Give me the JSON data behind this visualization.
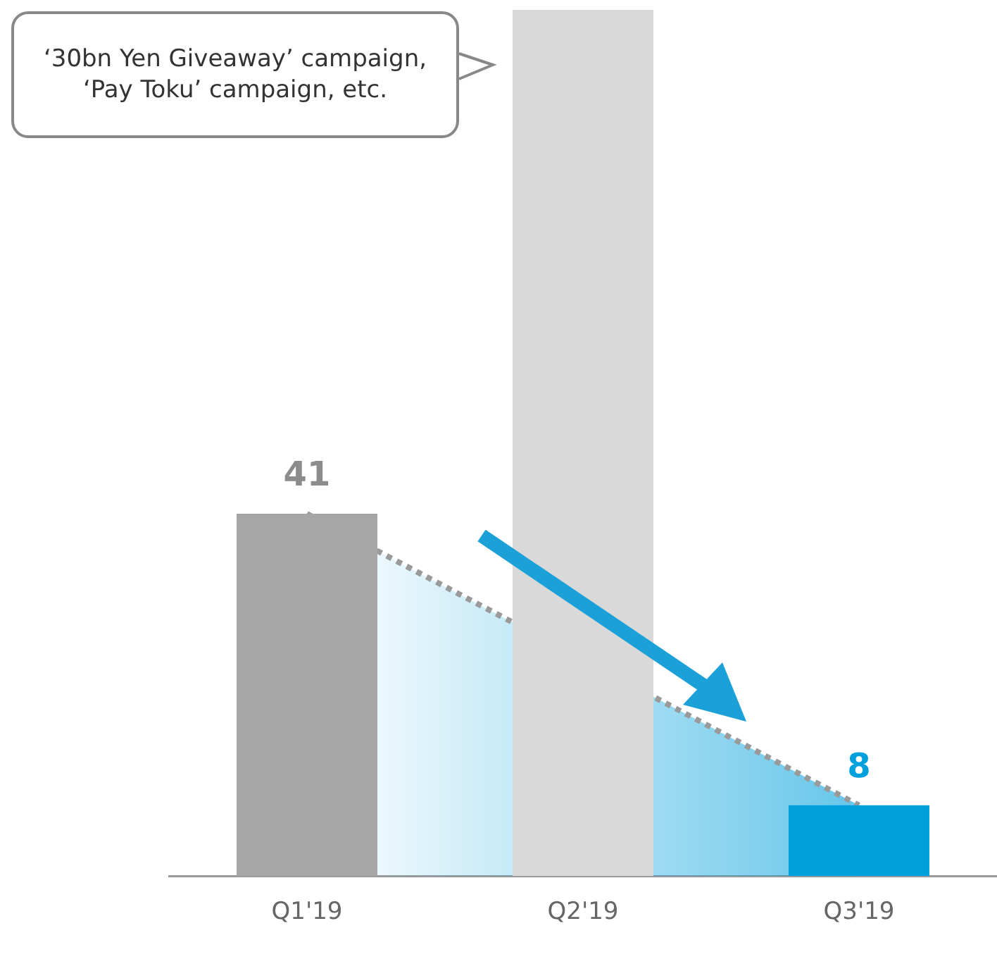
{
  "chart_data": {
    "type": "bar",
    "categories": [
      "Q1'19",
      "Q2'19",
      "Q3'19"
    ],
    "series": [
      {
        "values": [
          41,
          98,
          8
        ],
        "colors": [
          "#a6a6a6",
          "#d9d9d9",
          "#00a0dc"
        ],
        "value_labels": [
          "41",
          null,
          "8"
        ]
      },
      {
        "type": "area",
        "values": [
          41,
          null,
          8
        ],
        "color": "#9a9a9a",
        "line_style": "dotted",
        "marker": "none"
      }
    ],
    "ylim": [
      0,
      98
    ],
    "annotations": [
      "‘30bn Yen Giveaway’ campaign, ‘Pay Toku’ campaign, etc."
    ],
    "grid": false,
    "legend": false,
    "tick_labels": "x"
  }
}
